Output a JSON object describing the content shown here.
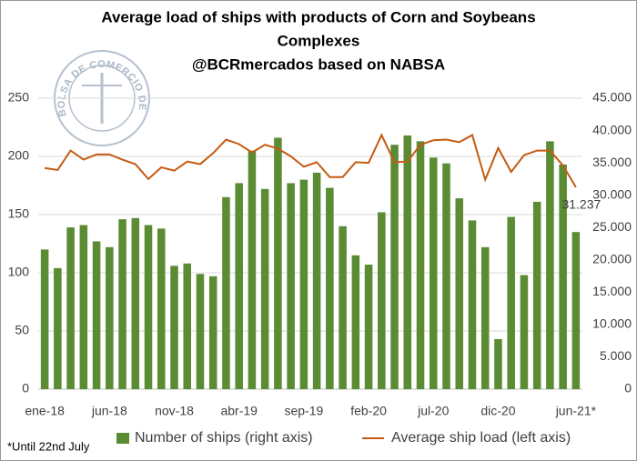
{
  "chart_data": {
    "type": "bar",
    "title": [
      "Average load of ships with products of Corn and Soybeans",
      "Complexes",
      "@BCRmercados based on NABSA"
    ],
    "logo_text": "BOLSA DE COMERCIO DE ROSARIO",
    "footnote": "*Until 22nd July",
    "categories": [
      "ene-18",
      null,
      null,
      null,
      null,
      "jun-18",
      null,
      null,
      null,
      null,
      "nov-18",
      null,
      null,
      null,
      null,
      "abr-19",
      null,
      null,
      null,
      null,
      "sep-19",
      null,
      null,
      null,
      null,
      "feb-20",
      null,
      null,
      null,
      null,
      "jul-20",
      null,
      null,
      null,
      null,
      "dic-20",
      null,
      null,
      null,
      null,
      null,
      "jun-21*"
    ],
    "series": [
      {
        "name": "Number of ships (right axis)",
        "type": "bar",
        "color": "#5b8c34",
        "values": [
          120,
          104,
          139,
          141,
          127,
          122,
          146,
          147,
          141,
          138,
          106,
          108,
          99,
          97,
          165,
          177,
          205,
          172,
          216,
          177,
          180,
          186,
          173,
          140,
          115,
          107,
          152,
          210,
          218,
          213,
          199,
          194,
          164,
          145,
          122,
          43,
          148,
          98,
          161,
          213,
          193,
          135
        ]
      },
      {
        "name": "Average ship load (left axis)",
        "type": "line",
        "axis": "y2",
        "color": "#c55a11",
        "values": [
          34200,
          33900,
          36900,
          35500,
          36300,
          36300,
          35500,
          34800,
          32500,
          34300,
          33800,
          35200,
          34800,
          36500,
          38600,
          37900,
          36600,
          37800,
          37200,
          36000,
          34400,
          35100,
          32800,
          32800,
          35100,
          35000,
          39300,
          35100,
          35200,
          37800,
          38500,
          38600,
          38200,
          39300,
          32400,
          37300,
          33600,
          36200,
          36900,
          36900,
          34600,
          31237
        ],
        "value_labels": [
          null,
          null,
          null,
          null,
          null,
          null,
          null,
          null,
          null,
          null,
          null,
          null,
          null,
          null,
          null,
          null,
          null,
          null,
          null,
          null,
          null,
          null,
          null,
          null,
          null,
          null,
          null,
          null,
          null,
          null,
          null,
          null,
          null,
          null,
          null,
          null,
          null,
          null,
          null,
          null,
          null,
          "31.237"
        ]
      }
    ],
    "ylim": [
      0,
      250
    ],
    "yticks": [
      0,
      50,
      100,
      150,
      200,
      250
    ],
    "y2lim": [
      0,
      45000
    ],
    "y2ticks": [
      0,
      {
        "value": 5000,
        "label": "5.000"
      },
      {
        "value": 10000,
        "label": "10.000"
      },
      {
        "value": 15000,
        "label": "15.000"
      },
      {
        "value": 20000,
        "label": "20.000"
      },
      {
        "value": 25000,
        "label": "25.000"
      },
      {
        "value": 30000,
        "label": "30.000"
      },
      {
        "value": 35000,
        "label": "35.000"
      },
      {
        "value": 40000,
        "label": "40.000"
      },
      {
        "value": 45000,
        "label": "45.000"
      }
    ],
    "grid": true,
    "legend": "bottom"
  }
}
